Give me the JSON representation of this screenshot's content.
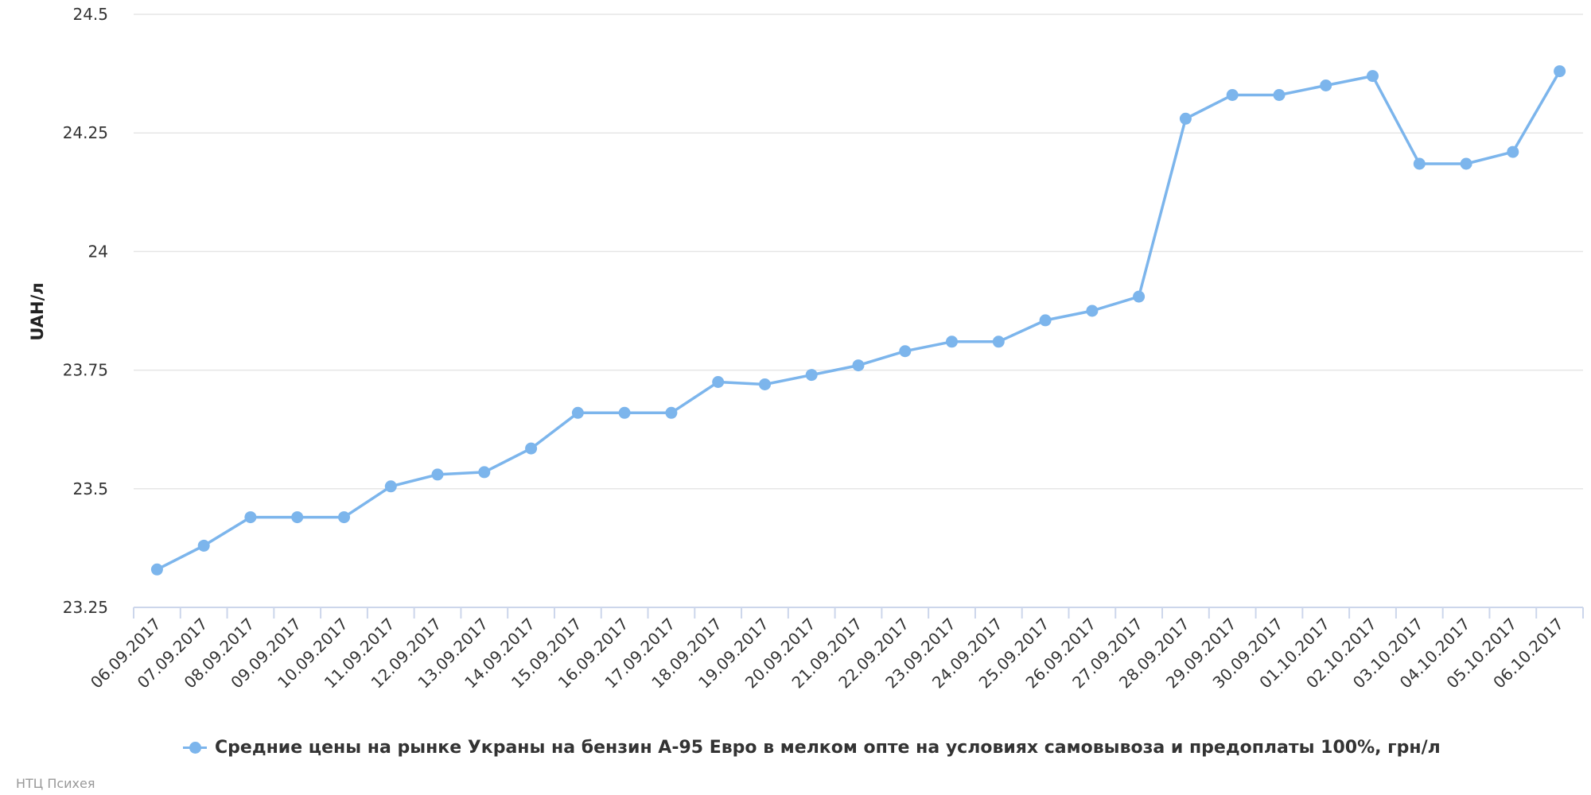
{
  "chart_data": {
    "type": "line",
    "title": "",
    "xlabel": "",
    "ylabel": "UAH/л",
    "ylim": [
      23.25,
      24.5
    ],
    "y_ticks": [
      "23.25",
      "23.5",
      "23.75",
      "24",
      "24.25",
      "24.5"
    ],
    "grid": "horizontal",
    "legend_position": "bottom",
    "categories": [
      "06.09.2017",
      "07.09.2017",
      "08.09.2017",
      "09.09.2017",
      "10.09.2017",
      "11.09.2017",
      "12.09.2017",
      "13.09.2017",
      "14.09.2017",
      "15.09.2017",
      "16.09.2017",
      "17.09.2017",
      "18.09.2017",
      "19.09.2017",
      "20.09.2017",
      "21.09.2017",
      "22.09.2017",
      "23.09.2017",
      "24.09.2017",
      "25.09.2017",
      "26.09.2017",
      "27.09.2017",
      "28.09.2017",
      "29.09.2017",
      "30.09.2017",
      "01.10.2017",
      "02.10.2017",
      "03.10.2017",
      "04.10.2017",
      "05.10.2017",
      "06.10.2017"
    ],
    "series": [
      {
        "name": "Средние цены на рынке Украны на бензин А-95 Евро в мелком опте на условиях самовывоза и предоплаты 100%, грн/л",
        "color": "#7cb5ec",
        "values": [
          23.33,
          23.38,
          23.44,
          23.44,
          23.44,
          23.505,
          23.53,
          23.535,
          23.585,
          23.66,
          23.66,
          23.66,
          23.725,
          23.72,
          23.74,
          23.76,
          23.79,
          23.81,
          23.81,
          23.855,
          23.875,
          23.905,
          24.28,
          24.33,
          24.33,
          24.35,
          24.37,
          24.185,
          24.185,
          24.21,
          24.38
        ]
      }
    ]
  },
  "credit": "НТЦ Психея",
  "colors": {
    "series": "#7cb5ec",
    "grid": "#e6e6e6",
    "axis": "#ccd6eb"
  }
}
